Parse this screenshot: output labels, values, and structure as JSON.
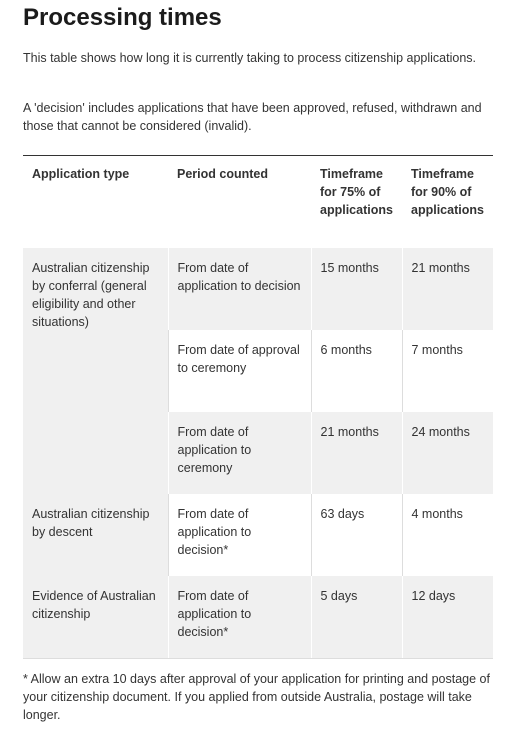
{
  "header": {
    "title": "Processing times"
  },
  "intro": [
    "This table shows how long it is currently taking to process citizenship applications.",
    "A 'decision' includes applications that have been approved, refused, withdrawn and those that cannot be considered (invalid)."
  ],
  "table": {
    "columns": [
      "Application type",
      "Period counted",
      "Timeframe for 75% of applications",
      "Timeframe for  90% of applications"
    ],
    "groups": [
      {
        "type": "Australian citizenship by conferral (general eligibility and other situations)",
        "rows": [
          [
            "From date of application to decision",
            "15 months",
            "21 months"
          ],
          [
            "From date of approval to ceremony",
            "6 months",
            "7 months"
          ],
          [
            "From date of application to ceremony",
            "21 months",
            "24 months"
          ]
        ]
      },
      {
        "type": "Australian citizenship by descent",
        "rows": [
          [
            "From date of application to decision*",
            "63 days",
            "4 months"
          ]
        ]
      },
      {
        "type": "Evidence of Australian citizenship",
        "rows": [
          [
            "From date of application to decision*",
            "5 days",
            "12 days"
          ]
        ]
      }
    ]
  },
  "footnote": "* Allow an extra 10 days after approval of your application for printing and postage of your citizenship document. If you applied from outside Australia, postage will take longer."
}
